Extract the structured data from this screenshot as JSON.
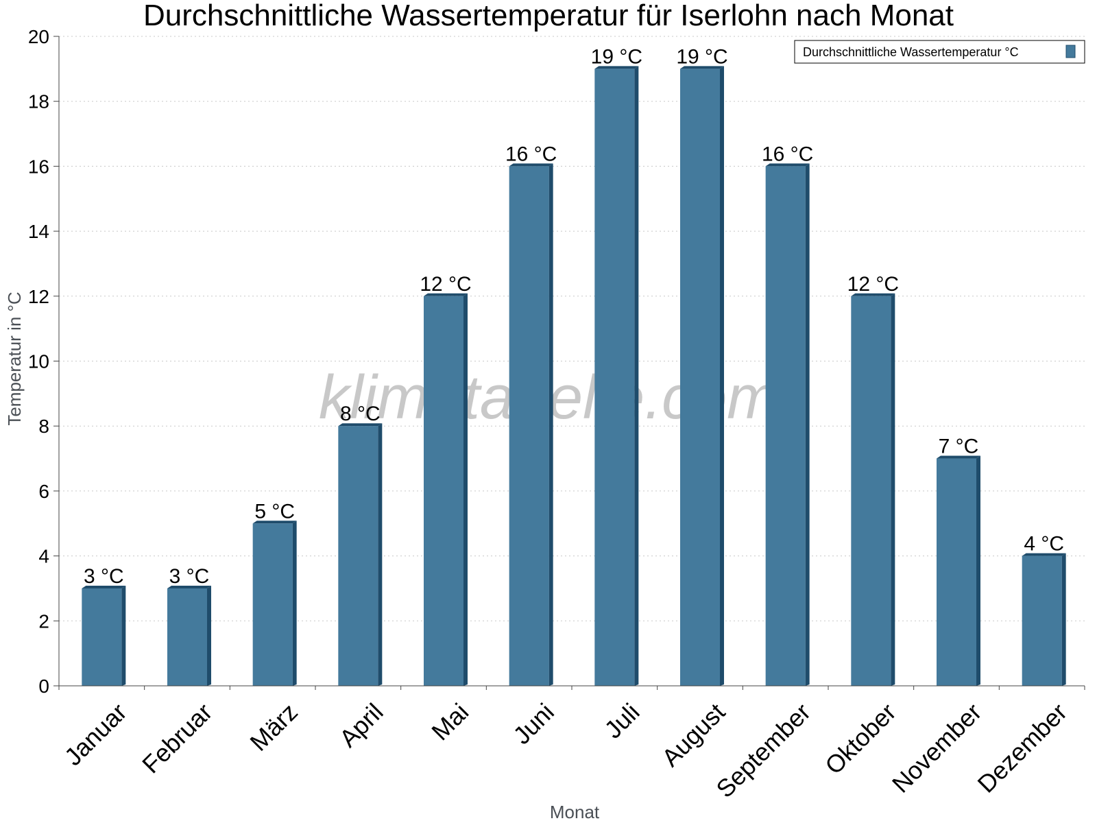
{
  "chart_data": {
    "type": "bar",
    "title": "Durchschnittliche Wassertemperatur für Iserlohn nach Monat",
    "xlabel": "Monat",
    "ylabel": "Temperatur in °C",
    "categories": [
      "Januar",
      "Februar",
      "März",
      "April",
      "Mai",
      "Juni",
      "Juli",
      "August",
      "September",
      "Oktober",
      "November",
      "Dezember"
    ],
    "series": [
      {
        "name": "Durchschnittliche Wassertemperatur °C",
        "values": [
          3,
          3,
          5,
          8,
          12,
          16,
          19,
          19,
          16,
          12,
          7,
          4
        ],
        "labels": [
          "3 °C",
          "3 °C",
          "5 °C",
          "8 °C",
          "12 °C",
          "16 °C",
          "19 °C",
          "19 °C",
          "16 °C",
          "12 °C",
          "7 °C",
          "4 °C"
        ]
      }
    ],
    "yticks": [
      0,
      2,
      4,
      6,
      8,
      10,
      12,
      14,
      16,
      18,
      20
    ],
    "ylim": [
      0,
      20
    ],
    "grid": true,
    "legend_position": "top-right",
    "colors": {
      "bar": "#447a9c",
      "bar_side": "#1f4c6b",
      "bar_top": "#1f4c6b"
    },
    "watermark": "klimatabelle.com"
  }
}
